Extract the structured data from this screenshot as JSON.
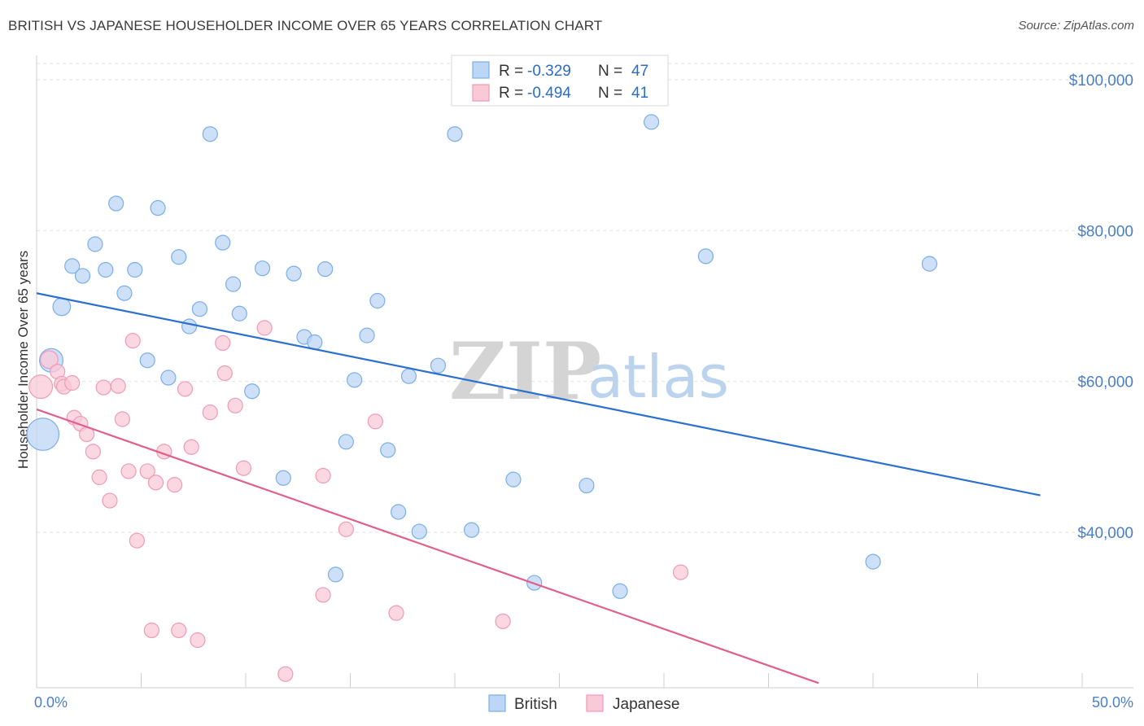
{
  "title": "BRITISH VS JAPANESE HOUSEHOLDER INCOME OVER 65 YEARS CORRELATION CHART",
  "source": "Source: ZipAtlas.com",
  "colors": {
    "british": "#7aaee8",
    "british_fill": "#bcd6f5",
    "british_line": "#2b6fd1",
    "japanese": "#f09ab6",
    "japanese_fill": "#f9c9d8",
    "japanese_line": "#e0608c",
    "axis_text": "#4a7fc8"
  },
  "legend": {
    "british": {
      "r_label": "R =",
      "r_value": "-0.329",
      "n_label": "N =",
      "n_value": "47"
    },
    "japanese": {
      "r_label": "R =",
      "r_value": "-0.494",
      "n_label": "N =",
      "n_value": "41"
    }
  },
  "bottom_legend": [
    "British",
    "Japanese"
  ],
  "watermark": {
    "zip": "ZIP",
    "atlas": "atlas"
  },
  "chart_data": {
    "type": "scatter",
    "title": "BRITISH VS JAPANESE HOUSEHOLDER INCOME OVER 65 YEARS CORRELATION CHART",
    "xlabel": "",
    "ylabel": "Householder Income Over 65 years",
    "xlim": [
      0,
      50
    ],
    "ylim": [
      20000,
      102000
    ],
    "x_tick_labels": [
      "0.0%",
      "50.0%"
    ],
    "y_ticks": [
      40000,
      60000,
      80000,
      100000
    ],
    "y_tick_labels": [
      "$40,000",
      "$60,000",
      "$80,000",
      "$100,000"
    ],
    "grid": true,
    "legend_position": "top-center",
    "series": [
      {
        "name": "British",
        "points": [
          [
            0.3,
            53000,
            2.2
          ],
          [
            0.7,
            62800,
            1.6
          ],
          [
            1.2,
            69900,
            1.2
          ],
          [
            1.7,
            75300,
            1
          ],
          [
            2.2,
            74000,
            1
          ],
          [
            2.8,
            78200,
            1
          ],
          [
            3.3,
            74800,
            1
          ],
          [
            3.8,
            83600,
            1
          ],
          [
            4.2,
            71700,
            1
          ],
          [
            4.7,
            74800,
            1
          ],
          [
            5.3,
            62800,
            1
          ],
          [
            5.8,
            83000,
            1
          ],
          [
            6.3,
            60500,
            1
          ],
          [
            6.8,
            76500,
            1
          ],
          [
            7.3,
            67300,
            1
          ],
          [
            7.8,
            69600,
            1
          ],
          [
            8.3,
            92800,
            1
          ],
          [
            8.9,
            78400,
            1
          ],
          [
            9.4,
            72900,
            1
          ],
          [
            9.7,
            69000,
            1
          ],
          [
            10.3,
            58700,
            1
          ],
          [
            10.8,
            75000,
            1
          ],
          [
            11.8,
            47200,
            1
          ],
          [
            12.3,
            74300,
            1
          ],
          [
            12.8,
            65900,
            1
          ],
          [
            13.3,
            65200,
            1
          ],
          [
            13.8,
            74900,
            1
          ],
          [
            14.3,
            34400,
            1
          ],
          [
            14.8,
            52000,
            1
          ],
          [
            15.2,
            60200,
            1
          ],
          [
            15.8,
            66100,
            1
          ],
          [
            16.3,
            70700,
            1
          ],
          [
            16.8,
            50900,
            1
          ],
          [
            17.3,
            42700,
            1
          ],
          [
            17.8,
            60700,
            1
          ],
          [
            18.3,
            40100,
            1
          ],
          [
            19.2,
            62100,
            1
          ],
          [
            20.0,
            92800,
            1
          ],
          [
            20.8,
            40300,
            1
          ],
          [
            22.8,
            47000,
            1
          ],
          [
            23.8,
            33300,
            1
          ],
          [
            26.3,
            46200,
            1
          ],
          [
            27.9,
            32200,
            1
          ],
          [
            29.4,
            94400,
            1
          ],
          [
            32.0,
            76600,
            1
          ],
          [
            40.0,
            36100,
            1
          ],
          [
            42.7,
            75600,
            1
          ]
        ]
      },
      {
        "name": "Japanese",
        "points": [
          [
            0.2,
            59300,
            1.6
          ],
          [
            0.6,
            62900,
            1.2
          ],
          [
            1.0,
            61300,
            1
          ],
          [
            1.2,
            59700,
            1
          ],
          [
            1.3,
            59300,
            1
          ],
          [
            1.7,
            59800,
            1
          ],
          [
            1.8,
            55200,
            1
          ],
          [
            2.1,
            54400,
            1
          ],
          [
            2.4,
            53000,
            1
          ],
          [
            2.7,
            50700,
            1
          ],
          [
            3.0,
            47300,
            1
          ],
          [
            3.2,
            59200,
            1
          ],
          [
            3.5,
            44200,
            1
          ],
          [
            3.9,
            59400,
            1
          ],
          [
            4.1,
            55000,
            1
          ],
          [
            4.4,
            48100,
            1
          ],
          [
            4.6,
            65400,
            1
          ],
          [
            4.8,
            38900,
            1
          ],
          [
            5.3,
            48100,
            1
          ],
          [
            5.5,
            27000,
            1
          ],
          [
            5.7,
            46600,
            1
          ],
          [
            6.1,
            50700,
            1
          ],
          [
            6.6,
            46300,
            1
          ],
          [
            6.8,
            27000,
            1
          ],
          [
            7.1,
            59000,
            1
          ],
          [
            7.4,
            51300,
            1
          ],
          [
            7.7,
            25700,
            1
          ],
          [
            8.3,
            55900,
            1
          ],
          [
            8.9,
            65100,
            1
          ],
          [
            9.0,
            61100,
            1
          ],
          [
            9.5,
            56800,
            1
          ],
          [
            9.9,
            48500,
            1
          ],
          [
            10.9,
            67100,
            1
          ],
          [
            11.9,
            21200,
            1
          ],
          [
            13.7,
            47500,
            1
          ],
          [
            13.7,
            31700,
            1
          ],
          [
            14.8,
            40400,
            1
          ],
          [
            16.2,
            54700,
            1
          ],
          [
            17.2,
            29300,
            1
          ],
          [
            22.3,
            28200,
            1
          ],
          [
            30.8,
            34700,
            1
          ]
        ]
      }
    ],
    "trend_lines": [
      {
        "series": "British",
        "x": [
          0,
          48
        ],
        "y": [
          71700,
          44900
        ]
      },
      {
        "series": "Japanese",
        "x": [
          0,
          37.4
        ],
        "y": [
          56300,
          20000
        ]
      }
    ]
  }
}
